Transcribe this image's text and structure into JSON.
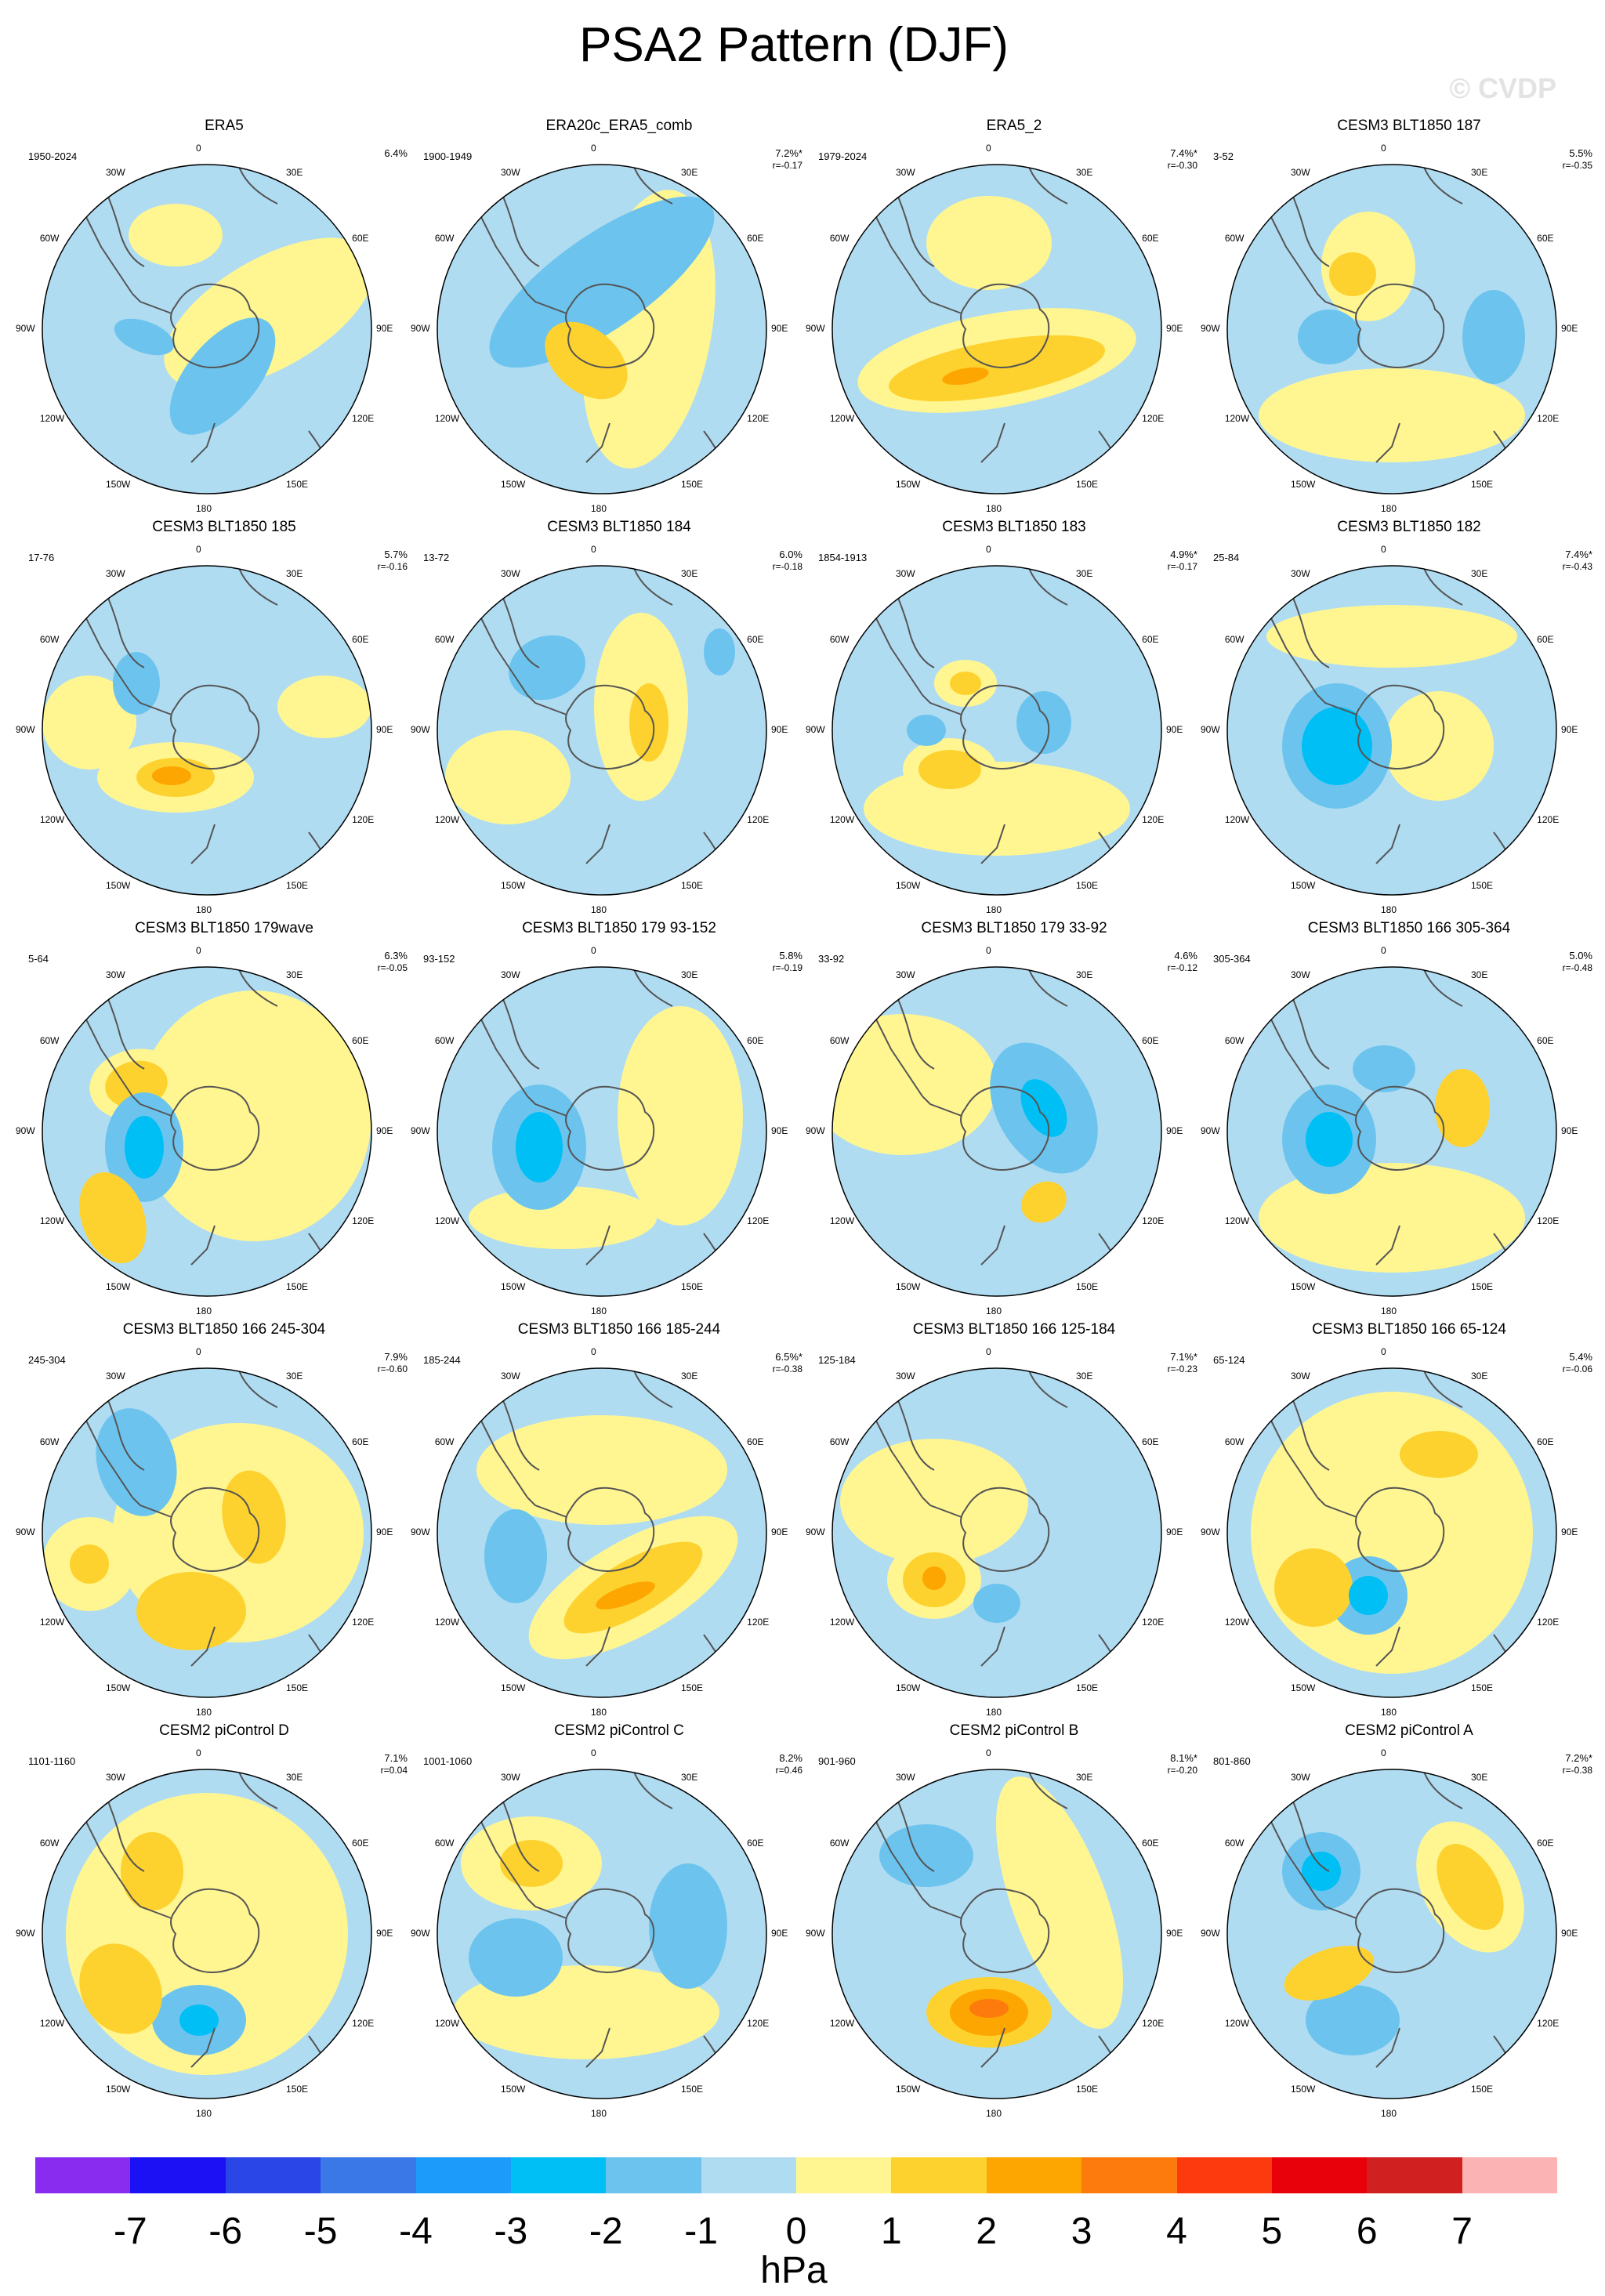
{
  "title": "PSA2 Pattern (DJF)",
  "watermark": "© CVDP",
  "colors": {
    "ocean_neg1": "#b0dcf2",
    "neg2": "#6cc4ee",
    "neg3": "#00bff5",
    "pos1": "#fff691",
    "pos2": "#fdd22f",
    "pos3": "#fda500",
    "coast": "#555555"
  },
  "lon_labels": [
    "0",
    "30E",
    "60E",
    "90E",
    "120E",
    "150E",
    "180",
    "150W",
    "120W",
    "90W",
    "60W",
    "30W"
  ],
  "panels": [
    {
      "title": "ERA5",
      "years": "1950-2024",
      "pct": "6.4%",
      "r": ""
    },
    {
      "title": "ERA20c_ERA5_comb",
      "years": "1900-1949",
      "pct": "7.2%*",
      "r": "r=-0.17"
    },
    {
      "title": "ERA5_2",
      "years": "1979-2024",
      "pct": "7.4%*",
      "r": "r=-0.30"
    },
    {
      "title": "CESM3 BLT1850 187",
      "years": "3-52",
      "pct": "5.5%",
      "r": "r=-0.35"
    },
    {
      "title": "CESM3 BLT1850 185",
      "years": "17-76",
      "pct": "5.7%",
      "r": "r=-0.16"
    },
    {
      "title": "CESM3 BLT1850 184",
      "years": "13-72",
      "pct": "6.0%",
      "r": "r=-0.18"
    },
    {
      "title": "CESM3 BLT1850 183",
      "years": "1854-1913",
      "pct": "4.9%*",
      "r": "r=-0.17"
    },
    {
      "title": "CESM3 BLT1850 182",
      "years": "25-84",
      "pct": "7.4%*",
      "r": "r=-0.43"
    },
    {
      "title": "CESM3 BLT1850 179wave",
      "years": "5-64",
      "pct": "6.3%",
      "r": "r=-0.05"
    },
    {
      "title": "CESM3 BLT1850 179 93-152",
      "years": "93-152",
      "pct": "5.8%",
      "r": "r=-0.19"
    },
    {
      "title": "CESM3 BLT1850 179 33-92",
      "years": "33-92",
      "pct": "4.6%",
      "r": "r=-0.12"
    },
    {
      "title": "CESM3 BLT1850 166 305-364",
      "years": "305-364",
      "pct": "5.0%",
      "r": "r=-0.48"
    },
    {
      "title": "CESM3 BLT1850 166 245-304",
      "years": "245-304",
      "pct": "7.9%",
      "r": "r=-0.60"
    },
    {
      "title": "CESM3 BLT1850 166 185-244",
      "years": "185-244",
      "pct": "6.5%*",
      "r": "r=-0.38"
    },
    {
      "title": "CESM3 BLT1850 166 125-184",
      "years": "125-184",
      "pct": "7.1%*",
      "r": "r=-0.23"
    },
    {
      "title": "CESM3 BLT1850 166 65-124",
      "years": "65-124",
      "pct": "5.4%",
      "r": "r=-0.06"
    },
    {
      "title": "CESM2 piControl D",
      "years": "1101-1160",
      "pct": "7.1%",
      "r": "r=0.04"
    },
    {
      "title": "CESM2 piControl C",
      "years": "1001-1060",
      "pct": "8.2%",
      "r": "r=0.46"
    },
    {
      "title": "CESM2 piControl B",
      "years": "901-960",
      "pct": "8.1%*",
      "r": "r=-0.20"
    },
    {
      "title": "CESM2 piControl A",
      "years": "801-860",
      "pct": "7.2%*",
      "r": "r=-0.38"
    }
  ],
  "colorbar": {
    "colors": [
      "#8a2bf0",
      "#1c10f5",
      "#2a46e6",
      "#3a78e8",
      "#1d9bfb",
      "#00bff5",
      "#6cc4ee",
      "#b0dcf2",
      "#fff691",
      "#fdd22f",
      "#fda500",
      "#fd7a0c",
      "#fd3a0e",
      "#e8000b",
      "#d02020",
      "#fcb3b3"
    ],
    "labels": [
      "-7",
      "-6",
      "-5",
      "-4",
      "-3",
      "-2",
      "-1",
      "0",
      "1",
      "2",
      "3",
      "4",
      "5",
      "6",
      "7"
    ],
    "unit": "hPa"
  }
}
